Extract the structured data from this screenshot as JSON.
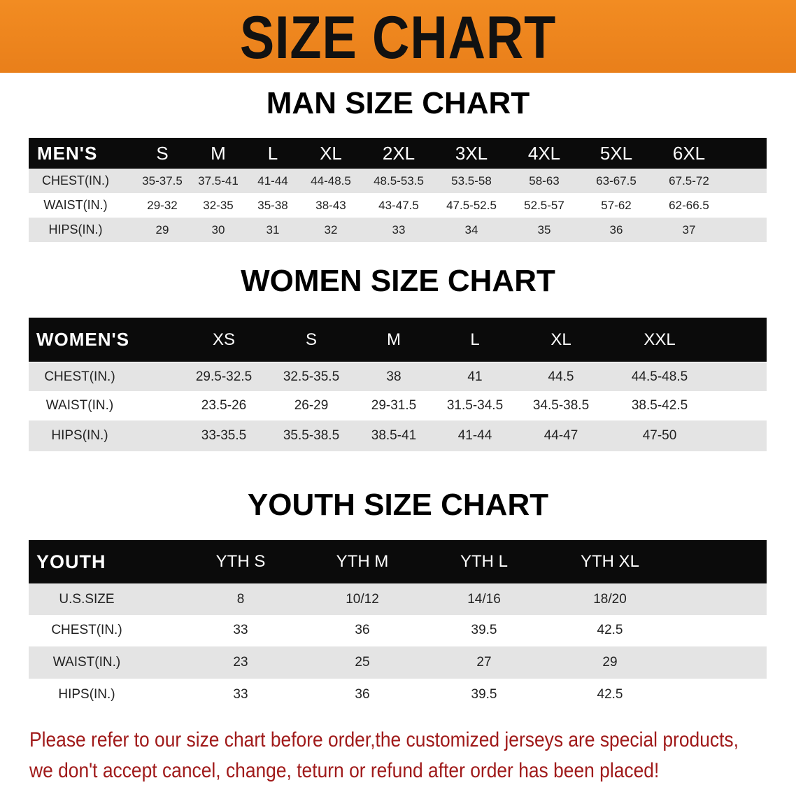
{
  "banner": {
    "title": "SIZE CHART",
    "color": "#ef8a20"
  },
  "men": {
    "title": "MAN SIZE CHART",
    "header": [
      "MEN'S",
      "S",
      "M",
      "L",
      "XL",
      "2XL",
      "3XL",
      "4XL",
      "5XL",
      "6XL"
    ],
    "rows": [
      [
        "CHEST(IN.)",
        "35-37.5",
        "37.5-41",
        "41-44",
        "44-48.5",
        "48.5-53.5",
        "53.5-58",
        "58-63",
        "63-67.5",
        "67.5-72"
      ],
      [
        "WAIST(IN.)",
        "29-32",
        "32-35",
        "35-38",
        "38-43",
        "43-47.5",
        "47.5-52.5",
        "52.5-57",
        "57-62",
        "62-66.5"
      ],
      [
        "HIPS(IN.)",
        "29",
        "30",
        "31",
        "32",
        "33",
        "34",
        "35",
        "36",
        "37"
      ]
    ]
  },
  "women": {
    "title": "WOMEN SIZE CHART",
    "header": [
      "WOMEN'S",
      "XS",
      "S",
      "M",
      "L",
      "XL",
      "XXL"
    ],
    "rows": [
      [
        "CHEST(IN.)",
        "29.5-32.5",
        "32.5-35.5",
        "38",
        "41",
        "44.5",
        "44.5-48.5"
      ],
      [
        "WAIST(IN.)",
        "23.5-26",
        "26-29",
        "29-31.5",
        "31.5-34.5",
        "34.5-38.5",
        "38.5-42.5"
      ],
      [
        "HIPS(IN.)",
        "33-35.5",
        "35.5-38.5",
        "38.5-41",
        "41-44",
        "44-47",
        "47-50"
      ]
    ]
  },
  "youth": {
    "title": "YOUTH SIZE CHART",
    "header": [
      "YOUTH",
      "YTH S",
      "YTH M",
      "YTH L",
      "YTH XL"
    ],
    "rows": [
      [
        "U.S.SIZE",
        "8",
        "10/12",
        "14/16",
        "18/20"
      ],
      [
        "CHEST(IN.)",
        "33",
        "36",
        "39.5",
        "42.5"
      ],
      [
        "WAIST(IN.)",
        "23",
        "25",
        "27",
        "29"
      ],
      [
        "HIPS(IN.)",
        "33",
        "36",
        "39.5",
        "42.5"
      ]
    ]
  },
  "note": {
    "line1": "Please refer to our size chart before order,the customized jerseys are special products,",
    "line2": "we don't accept cancel, change, teturn or refund after order has been placed!",
    "color": "#a01a1a"
  }
}
